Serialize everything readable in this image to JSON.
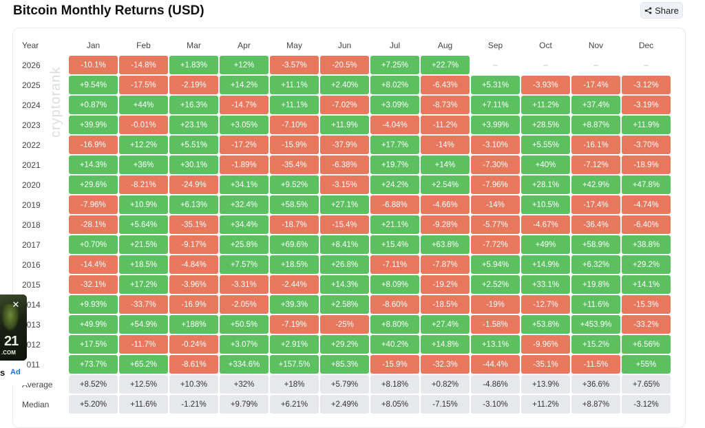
{
  "title": "Bitcoin Monthly Returns (USD)",
  "share_label": "Share",
  "watermark": "cryptorank",
  "table": {
    "year_header": "Year",
    "months": [
      "Jan",
      "Feb",
      "Mar",
      "Apr",
      "May",
      "Jun",
      "Jul",
      "Aug",
      "Sep",
      "Oct",
      "Nov",
      "Dec"
    ],
    "rows": [
      {
        "year": "2026",
        "values": [
          "-10.1%",
          "-14.8%",
          "+1.83%",
          "+12%",
          "-3.57%",
          "-20.5%",
          "+7.25%",
          "+22.7%",
          "–",
          "–",
          "–",
          "–"
        ]
      },
      {
        "year": "2025",
        "values": [
          "+9.54%",
          "-17.5%",
          "-2.19%",
          "+14.2%",
          "+11.1%",
          "+2.40%",
          "+8.02%",
          "-6.43%",
          "+5.31%",
          "-3.93%",
          "-17.4%",
          "-3.12%"
        ]
      },
      {
        "year": "2024",
        "values": [
          "+0.87%",
          "+44%",
          "+16.3%",
          "-14.7%",
          "+11.1%",
          "-7.02%",
          "+3.09%",
          "-8.73%",
          "+7.11%",
          "+11.2%",
          "+37.4%",
          "-3.19%"
        ]
      },
      {
        "year": "2023",
        "values": [
          "+39.9%",
          "-0.01%",
          "+23.1%",
          "+3.05%",
          "-7.10%",
          "+11.9%",
          "-4.04%",
          "-11.2%",
          "+3.99%",
          "+28.5%",
          "+8.87%",
          "+11.9%"
        ]
      },
      {
        "year": "2022",
        "values": [
          "-16.9%",
          "+12.2%",
          "+5.51%",
          "-17.2%",
          "-15.9%",
          "-37.9%",
          "+17.7%",
          "-14%",
          "-3.10%",
          "+5.55%",
          "-16.1%",
          "-3.70%"
        ]
      },
      {
        "year": "2021",
        "values": [
          "+14.3%",
          "+36%",
          "+30.1%",
          "-1.89%",
          "-35.4%",
          "-6.38%",
          "+19.7%",
          "+14%",
          "-7.30%",
          "+40%",
          "-7.12%",
          "-18.9%"
        ]
      },
      {
        "year": "2020",
        "values": [
          "+29.6%",
          "-8.21%",
          "-24.9%",
          "+34.1%",
          "+9.52%",
          "-3.15%",
          "+24.2%",
          "+2.54%",
          "-7.96%",
          "+28.1%",
          "+42.9%",
          "+47.8%"
        ]
      },
      {
        "year": "2019",
        "values": [
          "-7.96%",
          "+10.9%",
          "+6.13%",
          "+32.4%",
          "+58.5%",
          "+27.1%",
          "-6.88%",
          "-4.66%",
          "-14%",
          "+10.5%",
          "-17.4%",
          "-4.74%"
        ]
      },
      {
        "year": "2018",
        "values": [
          "-28.1%",
          "+5.64%",
          "-35.1%",
          "+34.4%",
          "-18.7%",
          "-15.4%",
          "+21.1%",
          "-9.28%",
          "-5.77%",
          "-4.67%",
          "-36.4%",
          "-6.40%"
        ]
      },
      {
        "year": "2017",
        "values": [
          "+0.70%",
          "+21.5%",
          "-9.17%",
          "+25.8%",
          "+69.6%",
          "+8.41%",
          "+15.4%",
          "+63.8%",
          "-7.72%",
          "+49%",
          "+58.9%",
          "+38.8%"
        ]
      },
      {
        "year": "2016",
        "values": [
          "-14.4%",
          "+18.5%",
          "-4.84%",
          "+7.57%",
          "+18.5%",
          "+26.8%",
          "-7.11%",
          "-7.87%",
          "+5.94%",
          "+14.9%",
          "+6.32%",
          "+29.2%"
        ]
      },
      {
        "year": "2015",
        "values": [
          "-32.1%",
          "+17.2%",
          "-3.96%",
          "-3.31%",
          "-2.44%",
          "+14.3%",
          "+8.09%",
          "-19.2%",
          "+2.52%",
          "+33.1%",
          "+19.8%",
          "+14.1%"
        ]
      },
      {
        "year": "2014",
        "values": [
          "+9.93%",
          "-33.7%",
          "-16.9%",
          "-2.05%",
          "+39.3%",
          "+2.58%",
          "-8.60%",
          "-18.5%",
          "-19%",
          "-12.7%",
          "+11.6%",
          "-15.3%"
        ]
      },
      {
        "year": "2013",
        "values": [
          "+49.9%",
          "+54.9%",
          "+188%",
          "+50.5%",
          "-7.19%",
          "-25%",
          "+8.80%",
          "+27.4%",
          "-1.58%",
          "+53.8%",
          "+453.9%",
          "-33.2%"
        ]
      },
      {
        "year": "2012",
        "values": [
          "+17.5%",
          "-11.7%",
          "-0.24%",
          "+3.07%",
          "+2.91%",
          "+29.2%",
          "+40.2%",
          "+14.8%",
          "+13.1%",
          "-9.96%",
          "+15.2%",
          "+6.56%"
        ]
      },
      {
        "year": "2011",
        "values": [
          "+73.7%",
          "+65.2%",
          "-8.61%",
          "+334.6%",
          "+157.5%",
          "+85.3%",
          "-15.9%",
          "-32.3%",
          "-44.4%",
          "-35.1%",
          "-11.5%",
          "+55%"
        ]
      }
    ],
    "stats": [
      {
        "label": "Average",
        "values": [
          "+8.52%",
          "+12.5%",
          "+10.3%",
          "+32%",
          "+18%",
          "+5.79%",
          "+8.18%",
          "+0.82%",
          "-4.86%",
          "+13.9%",
          "+36.6%",
          "+7.65%"
        ]
      },
      {
        "label": "Median",
        "values": [
          "+5.20%",
          "+11.6%",
          "-1.21%",
          "+9.79%",
          "+6.21%",
          "+2.49%",
          "+8.05%",
          "-7.15%",
          "-3.10%",
          "+11.2%",
          "+8.87%",
          "-3.12%"
        ]
      }
    ]
  },
  "ad": {
    "logo_text": "21",
    "domain": ".COM",
    "name": "s",
    "label": "Ad"
  },
  "colors": {
    "positive": "#5cc061",
    "negative": "#e8785d",
    "stat": "#e6e8ec"
  }
}
